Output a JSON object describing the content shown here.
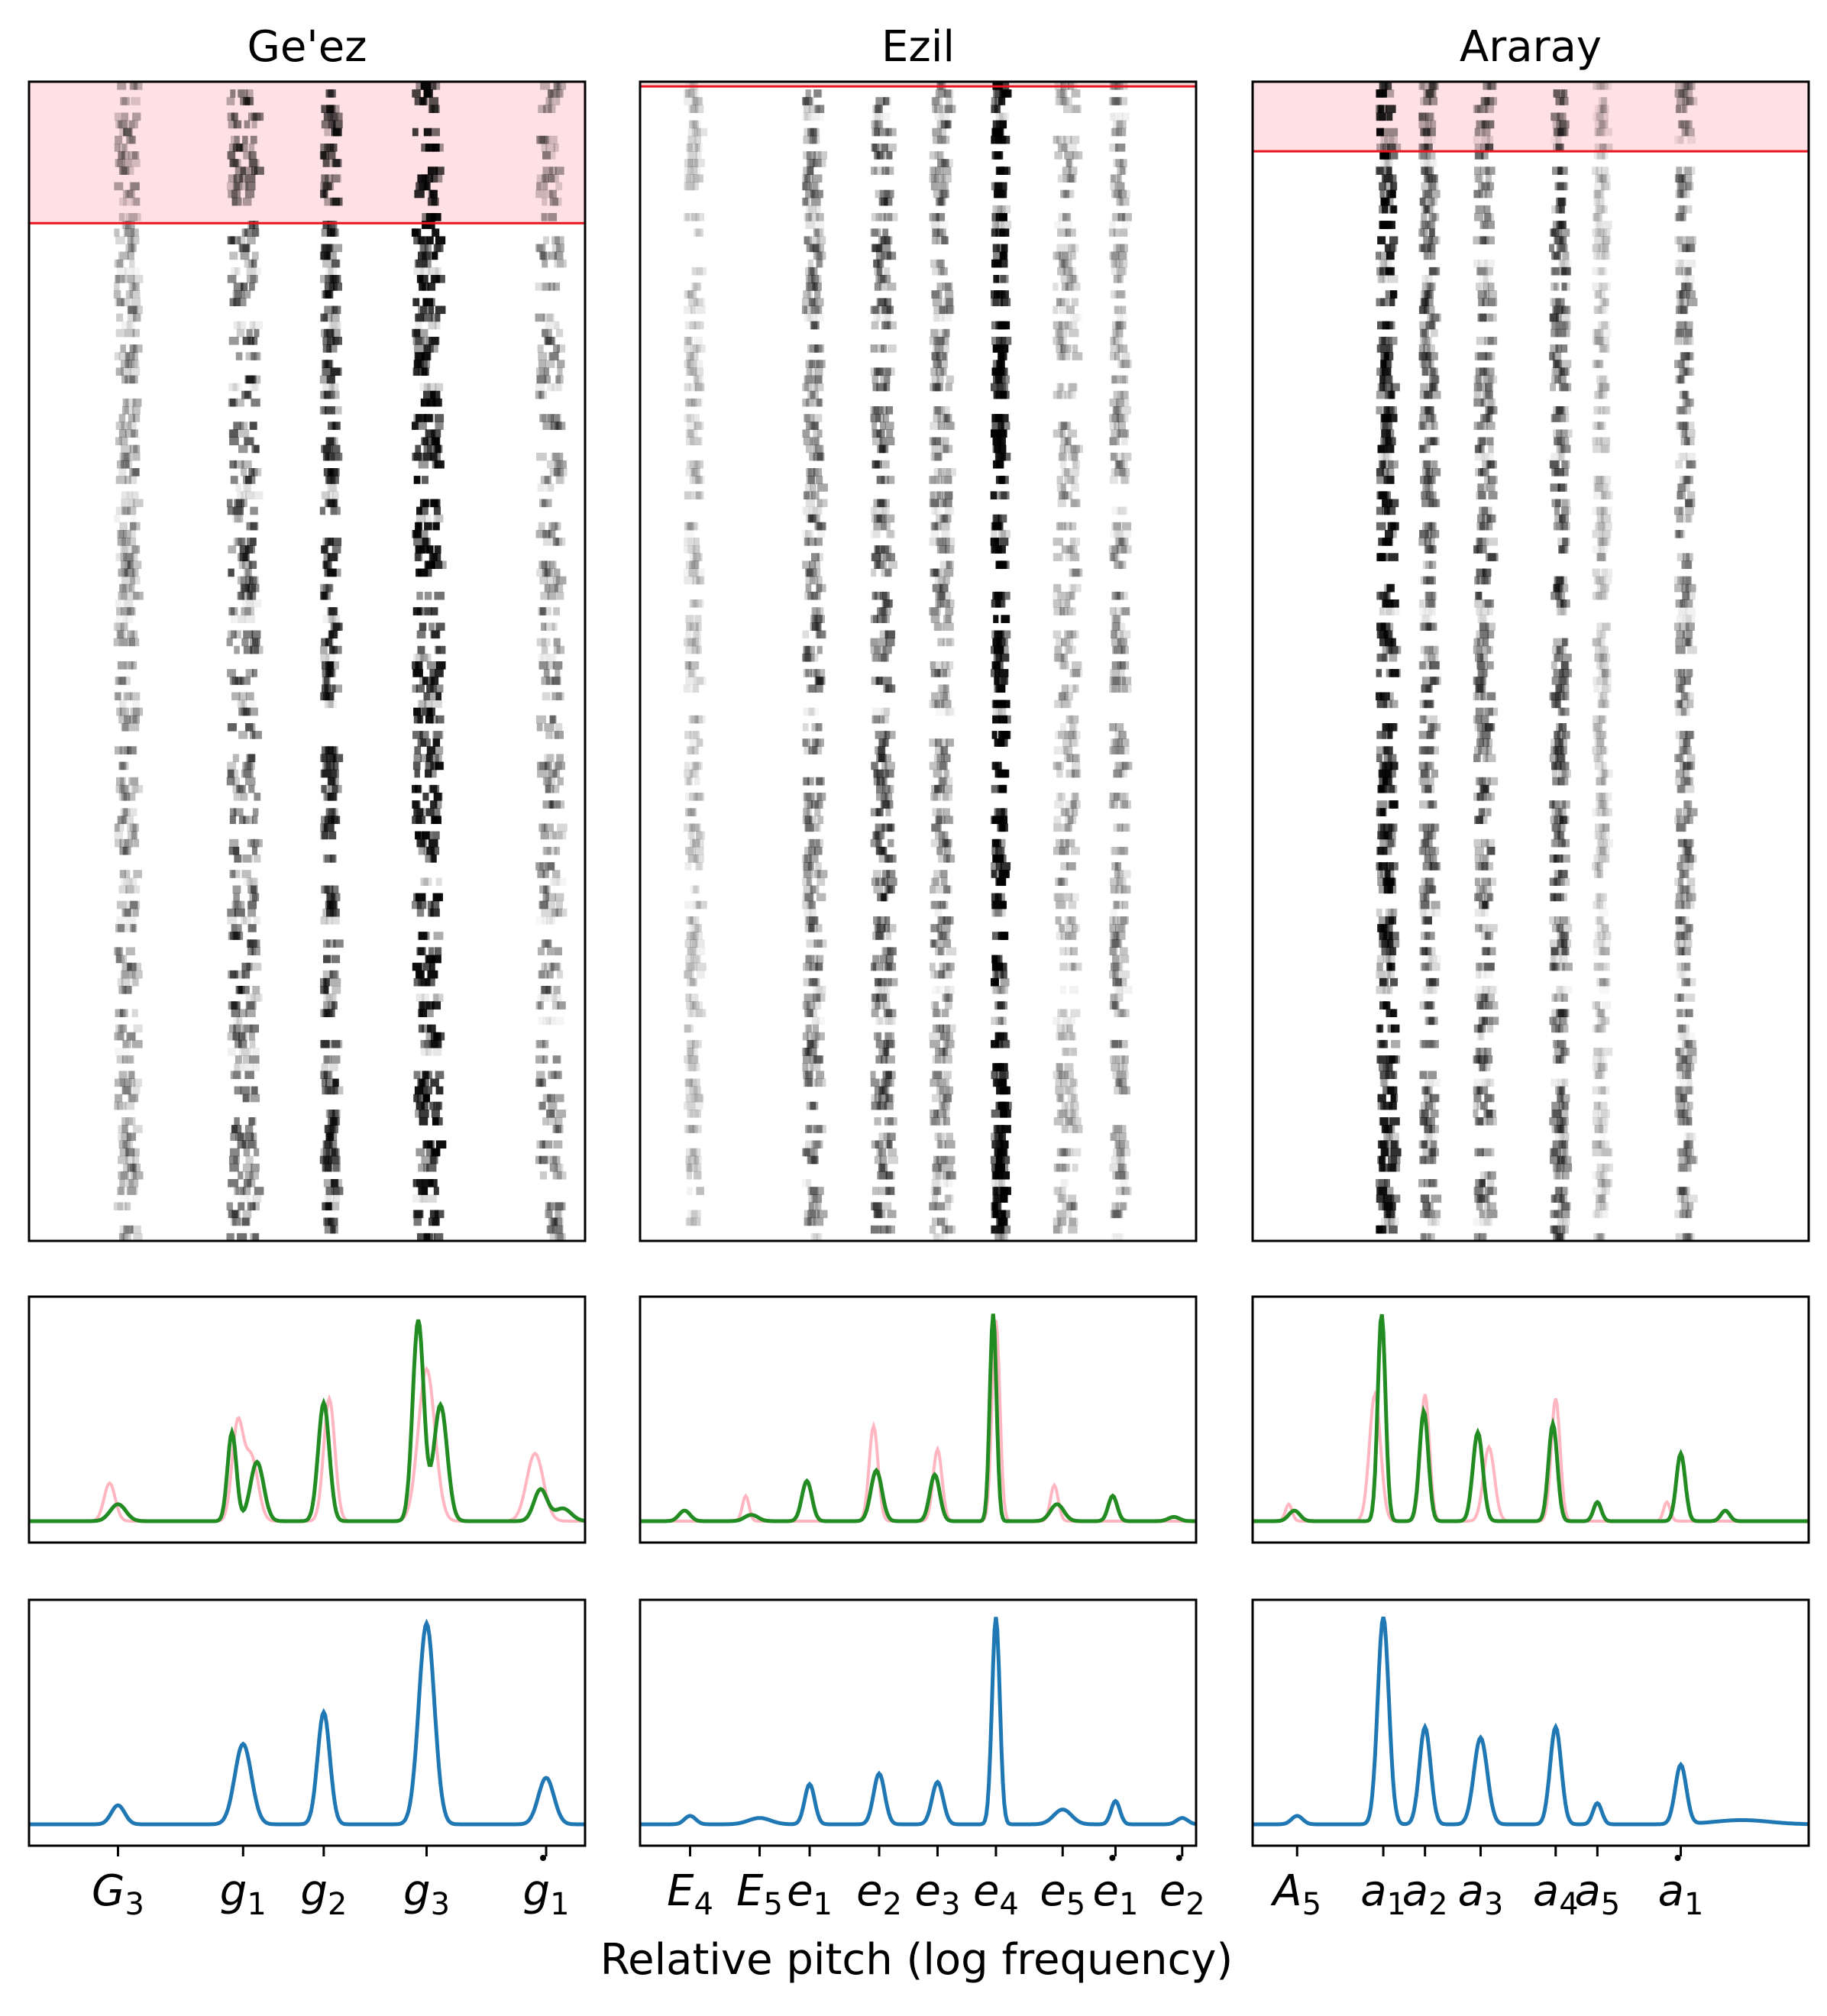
{
  "figure": {
    "xlabel": "Relative pitch (log frequency)"
  },
  "colors": {
    "highlight_fill": "#ffe0e4",
    "highlight_line": "#e8141e",
    "mean_line": "#228b22",
    "alt_line": "#ffb6c1",
    "model_line": "#1f77b4",
    "heatmap_ink": "#000000"
  },
  "chart_data": [
    {
      "type": "heatmap",
      "title": "Ge'ez",
      "xlim": [
        0,
        1
      ],
      "highlight_top_fraction": 0.122,
      "ticks": [
        {
          "x": 0.16,
          "letter": "G",
          "sub": "3",
          "dot": false
        },
        {
          "x": 0.385,
          "letter": "g",
          "sub": "1",
          "dot": false
        },
        {
          "x": 0.53,
          "letter": "g",
          "sub": "2",
          "dot": false
        },
        {
          "x": 0.715,
          "letter": "g",
          "sub": "3",
          "dot": false
        },
        {
          "x": 0.93,
          "letter": "g",
          "sub": "1",
          "dot": true
        }
      ],
      "histogram": {
        "green": [
          {
            "x": 0.16,
            "h": 0.08,
            "w": 0.014
          },
          {
            "x": 0.365,
            "h": 0.42,
            "w": 0.008
          },
          {
            "x": 0.41,
            "h": 0.28,
            "w": 0.012
          },
          {
            "x": 0.53,
            "h": 0.56,
            "w": 0.01
          },
          {
            "x": 0.7,
            "h": 0.95,
            "w": 0.01
          },
          {
            "x": 0.74,
            "h": 0.55,
            "w": 0.012
          },
          {
            "x": 0.92,
            "h": 0.15,
            "w": 0.012
          },
          {
            "x": 0.96,
            "h": 0.06,
            "w": 0.015
          }
        ],
        "pink": [
          {
            "x": 0.145,
            "h": 0.18,
            "w": 0.01
          },
          {
            "x": 0.375,
            "h": 0.45,
            "w": 0.01
          },
          {
            "x": 0.4,
            "h": 0.3,
            "w": 0.012
          },
          {
            "x": 0.54,
            "h": 0.58,
            "w": 0.01
          },
          {
            "x": 0.715,
            "h": 0.72,
            "w": 0.015
          },
          {
            "x": 0.91,
            "h": 0.32,
            "w": 0.015
          }
        ]
      },
      "model": [
        {
          "x": 0.16,
          "h": 0.09,
          "w": 0.012
        },
        {
          "x": 0.385,
          "h": 0.38,
          "w": 0.015
        },
        {
          "x": 0.53,
          "h": 0.53,
          "w": 0.011
        },
        {
          "x": 0.715,
          "h": 0.95,
          "w": 0.014
        },
        {
          "x": 0.93,
          "h": 0.22,
          "w": 0.014
        }
      ],
      "heat_bands": [
        {
          "x": 0.17,
          "w": 0.018,
          "i": 0.25
        },
        {
          "x": 0.38,
          "w": 0.025,
          "i": 0.45
        },
        {
          "x": 0.535,
          "w": 0.012,
          "i": 0.55
        },
        {
          "x": 0.71,
          "w": 0.022,
          "i": 0.75
        },
        {
          "x": 0.93,
          "w": 0.02,
          "i": 0.3
        }
      ]
    },
    {
      "type": "heatmap",
      "title": "Ezil",
      "xlim": [
        0,
        1
      ],
      "highlight_top_fraction": 0.004,
      "ticks": [
        {
          "x": 0.09,
          "letter": "E",
          "sub": "4",
          "dot": false
        },
        {
          "x": 0.215,
          "letter": "E",
          "sub": "5",
          "dot": false
        },
        {
          "x": 0.305,
          "letter": "e",
          "sub": "1",
          "dot": false
        },
        {
          "x": 0.43,
          "letter": "e",
          "sub": "2",
          "dot": false
        },
        {
          "x": 0.535,
          "letter": "e",
          "sub": "3",
          "dot": false
        },
        {
          "x": 0.64,
          "letter": "e",
          "sub": "4",
          "dot": false
        },
        {
          "x": 0.76,
          "letter": "e",
          "sub": "5",
          "dot": false
        },
        {
          "x": 0.855,
          "letter": "e",
          "sub": "1",
          "dot": true
        },
        {
          "x": 0.975,
          "letter": "e",
          "sub": "2",
          "dot": true
        }
      ],
      "histogram": {
        "green": [
          {
            "x": 0.08,
            "h": 0.05,
            "w": 0.01
          },
          {
            "x": 0.2,
            "h": 0.03,
            "w": 0.012
          },
          {
            "x": 0.3,
            "h": 0.19,
            "w": 0.009
          },
          {
            "x": 0.425,
            "h": 0.24,
            "w": 0.01
          },
          {
            "x": 0.53,
            "h": 0.22,
            "w": 0.009
          },
          {
            "x": 0.635,
            "h": 0.98,
            "w": 0.006
          },
          {
            "x": 0.75,
            "h": 0.08,
            "w": 0.012
          },
          {
            "x": 0.85,
            "h": 0.12,
            "w": 0.008
          },
          {
            "x": 0.96,
            "h": 0.02,
            "w": 0.01
          }
        ],
        "pink": [
          {
            "x": 0.19,
            "h": 0.12,
            "w": 0.006
          },
          {
            "x": 0.42,
            "h": 0.45,
            "w": 0.008
          },
          {
            "x": 0.535,
            "h": 0.34,
            "w": 0.008
          },
          {
            "x": 0.64,
            "h": 0.95,
            "w": 0.007
          },
          {
            "x": 0.745,
            "h": 0.17,
            "w": 0.007
          }
        ]
      },
      "model": [
        {
          "x": 0.09,
          "h": 0.04,
          "w": 0.01
        },
        {
          "x": 0.215,
          "h": 0.03,
          "w": 0.02
        },
        {
          "x": 0.305,
          "h": 0.19,
          "w": 0.009
        },
        {
          "x": 0.43,
          "h": 0.24,
          "w": 0.01
        },
        {
          "x": 0.535,
          "h": 0.2,
          "w": 0.01
        },
        {
          "x": 0.64,
          "h": 0.98,
          "w": 0.007
        },
        {
          "x": 0.76,
          "h": 0.07,
          "w": 0.016
        },
        {
          "x": 0.855,
          "h": 0.11,
          "w": 0.008
        },
        {
          "x": 0.975,
          "h": 0.03,
          "w": 0.01
        }
      ],
      "heat_bands": [
        {
          "x": 0.09,
          "w": 0.012,
          "i": 0.12
        },
        {
          "x": 0.305,
          "w": 0.014,
          "i": 0.3
        },
        {
          "x": 0.43,
          "w": 0.016,
          "i": 0.4
        },
        {
          "x": 0.535,
          "w": 0.016,
          "i": 0.28
        },
        {
          "x": 0.64,
          "w": 0.01,
          "i": 0.85
        },
        {
          "x": 0.76,
          "w": 0.018,
          "i": 0.2
        },
        {
          "x": 0.855,
          "w": 0.012,
          "i": 0.22
        }
      ]
    },
    {
      "type": "heatmap",
      "title": "Araray",
      "xlim": [
        0,
        1
      ],
      "highlight_top_fraction": 0.06,
      "ticks": [
        {
          "x": 0.08,
          "letter": "A",
          "sub": "5",
          "dot": false
        },
        {
          "x": 0.235,
          "letter": "a",
          "sub": "1",
          "dot": false
        },
        {
          "x": 0.31,
          "letter": "a",
          "sub": "2",
          "dot": false
        },
        {
          "x": 0.41,
          "letter": "a",
          "sub": "3",
          "dot": false
        },
        {
          "x": 0.545,
          "letter": "a",
          "sub": "4",
          "dot": false
        },
        {
          "x": 0.62,
          "letter": "a",
          "sub": "5",
          "dot": false
        },
        {
          "x": 0.77,
          "letter": "a",
          "sub": "1",
          "dot": true
        }
      ],
      "histogram": {
        "green": [
          {
            "x": 0.075,
            "h": 0.05,
            "w": 0.01
          },
          {
            "x": 0.232,
            "h": 0.98,
            "w": 0.007
          },
          {
            "x": 0.308,
            "h": 0.52,
            "w": 0.008
          },
          {
            "x": 0.405,
            "h": 0.42,
            "w": 0.009
          },
          {
            "x": 0.54,
            "h": 0.46,
            "w": 0.008
          },
          {
            "x": 0.62,
            "h": 0.09,
            "w": 0.007
          },
          {
            "x": 0.77,
            "h": 0.32,
            "w": 0.008
          },
          {
            "x": 0.85,
            "h": 0.05,
            "w": 0.008
          }
        ],
        "pink": [
          {
            "x": 0.065,
            "h": 0.08,
            "w": 0.006
          },
          {
            "x": 0.22,
            "h": 0.6,
            "w": 0.01
          },
          {
            "x": 0.31,
            "h": 0.6,
            "w": 0.008
          },
          {
            "x": 0.425,
            "h": 0.35,
            "w": 0.01
          },
          {
            "x": 0.545,
            "h": 0.58,
            "w": 0.008
          },
          {
            "x": 0.745,
            "h": 0.09,
            "w": 0.006
          }
        ]
      },
      "model": [
        {
          "x": 0.08,
          "h": 0.04,
          "w": 0.01
        },
        {
          "x": 0.235,
          "h": 0.98,
          "w": 0.01
        },
        {
          "x": 0.31,
          "h": 0.46,
          "w": 0.01
        },
        {
          "x": 0.41,
          "h": 0.41,
          "w": 0.012
        },
        {
          "x": 0.545,
          "h": 0.46,
          "w": 0.01
        },
        {
          "x": 0.62,
          "h": 0.1,
          "w": 0.008
        },
        {
          "x": 0.77,
          "h": 0.28,
          "w": 0.01
        },
        {
          "x": 0.88,
          "h": 0.02,
          "w": 0.05
        }
      ],
      "heat_bands": [
        {
          "x": 0.235,
          "w": 0.014,
          "i": 0.7
        },
        {
          "x": 0.31,
          "w": 0.012,
          "i": 0.35
        },
        {
          "x": 0.41,
          "w": 0.014,
          "i": 0.35
        },
        {
          "x": 0.545,
          "w": 0.012,
          "i": 0.38
        },
        {
          "x": 0.62,
          "w": 0.01,
          "i": 0.12
        },
        {
          "x": 0.77,
          "w": 0.012,
          "i": 0.28
        }
      ]
    }
  ]
}
